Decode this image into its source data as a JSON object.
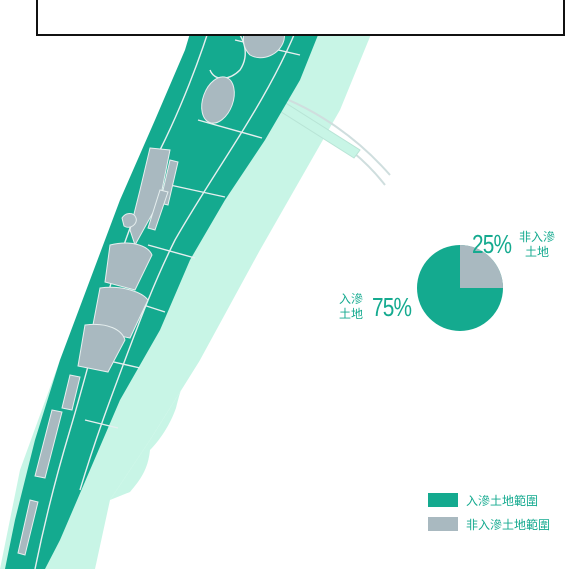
{
  "colors": {
    "infiltration": "#14aa8f",
    "non_infiltration": "#a9b9c0",
    "river": "#c8f5e6",
    "path": "#e6efef"
  },
  "caption": "",
  "pie": {
    "infiltration": {
      "percent_label": "75%",
      "label_line1": "入滲",
      "label_line2": "土地",
      "value": 75
    },
    "non_infiltration": {
      "percent_label": "25%",
      "label_line1": "非入滲",
      "label_line2": "土地",
      "value": 25
    }
  },
  "legend": [
    {
      "label": "入滲土地範圍",
      "color": "#14aa8f"
    },
    {
      "label": "非入滲土地範圍",
      "color": "#a9b9c0"
    }
  ]
}
